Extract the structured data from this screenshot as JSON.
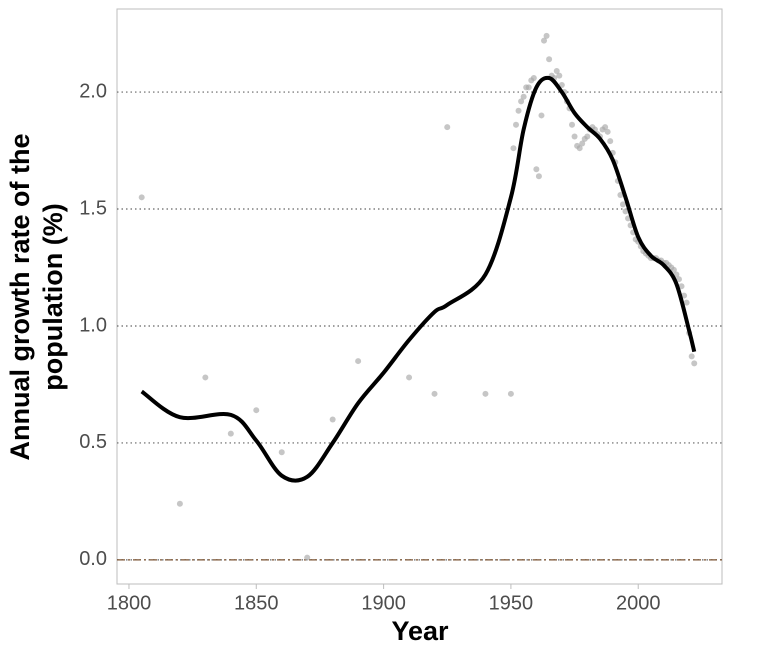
{
  "chart_data": {
    "type": "scatter",
    "xlabel": "Year",
    "ylabel": [
      "Annual growth rate of the",
      "population (%)"
    ],
    "x": [
      1805,
      1820,
      1830,
      1840,
      1850,
      1860,
      1870,
      1880,
      1890,
      1910,
      1920,
      1925,
      1940,
      1950,
      1951,
      1952,
      1953,
      1954,
      1955,
      1956,
      1957,
      1958,
      1959,
      1960,
      1961,
      1962,
      1963,
      1964,
      1965,
      1966,
      1967,
      1968,
      1969,
      1970,
      1971,
      1972,
      1973,
      1974,
      1975,
      1976,
      1977,
      1978,
      1979,
      1980,
      1981,
      1982,
      1983,
      1984,
      1985,
      1986,
      1987,
      1988,
      1989,
      1990,
      1991,
      1992,
      1993,
      1994,
      1995,
      1996,
      1997,
      1998,
      1999,
      2000,
      2001,
      2002,
      2003,
      2004,
      2005,
      2006,
      2007,
      2008,
      2009,
      2010,
      2011,
      2012,
      2013,
      2014,
      2015,
      2016,
      2017,
      2018,
      2019,
      2020,
      2021,
      2022
    ],
    "values": [
      1.55,
      0.24,
      0.78,
      0.54,
      0.64,
      0.46,
      0.01,
      0.6,
      0.85,
      0.78,
      0.71,
      1.85,
      0.71,
      0.71,
      1.76,
      1.86,
      1.92,
      1.96,
      1.98,
      2.02,
      2.02,
      2.05,
      2.06,
      1.67,
      1.64,
      1.9,
      2.22,
      2.24,
      2.14,
      2.07,
      2.06,
      2.09,
      2.07,
      2.03,
      2.0,
      1.96,
      1.93,
      1.86,
      1.81,
      1.77,
      1.76,
      1.78,
      1.8,
      1.81,
      1.84,
      1.85,
      1.84,
      1.82,
      1.81,
      1.84,
      1.85,
      1.83,
      1.79,
      1.74,
      1.7,
      1.62,
      1.56,
      1.52,
      1.49,
      1.46,
      1.43,
      1.4,
      1.37,
      1.36,
      1.34,
      1.32,
      1.31,
      1.3,
      1.29,
      1.29,
      1.29,
      1.28,
      1.28,
      1.27,
      1.27,
      1.26,
      1.25,
      1.24,
      1.22,
      1.2,
      1.17,
      1.13,
      1.1,
      0.97,
      0.87,
      0.84
    ],
    "color": "#a8a8a8",
    "trend": {
      "color": "#000000",
      "x": [
        1805,
        1820,
        1840,
        1850,
        1860,
        1870,
        1880,
        1890,
        1900,
        1910,
        1920,
        1925,
        1940,
        1950,
        1955,
        1960,
        1965,
        1970,
        1975,
        1980,
        1985,
        1990,
        1995,
        2000,
        2005,
        2010,
        2015,
        2020,
        2022
      ],
      "values": [
        0.72,
        0.61,
        0.62,
        0.51,
        0.36,
        0.355,
        0.5,
        0.67,
        0.8,
        0.94,
        1.06,
        1.09,
        1.22,
        1.55,
        1.84,
        2.02,
        2.06,
        2.0,
        1.91,
        1.85,
        1.8,
        1.71,
        1.55,
        1.38,
        1.3,
        1.26,
        1.18,
        0.98,
        0.89
      ]
    },
    "reference_line": {
      "value": 0,
      "color": "#7a5230"
    },
    "xlim": [
      1795.3,
      2032.9
    ],
    "ylim": [
      -0.103,
      2.355
    ],
    "xticks": [
      1800,
      1850,
      1900,
      1950,
      2000
    ],
    "yticks": [
      {
        "value": 0,
        "label": "0.0"
      },
      {
        "value": 0.5,
        "label": "0.5"
      },
      {
        "value": 1,
        "label": "1.0"
      },
      {
        "value": 1.5,
        "label": "1.5"
      },
      {
        "value": 2,
        "label": "2.0"
      }
    ],
    "grid": true
  }
}
